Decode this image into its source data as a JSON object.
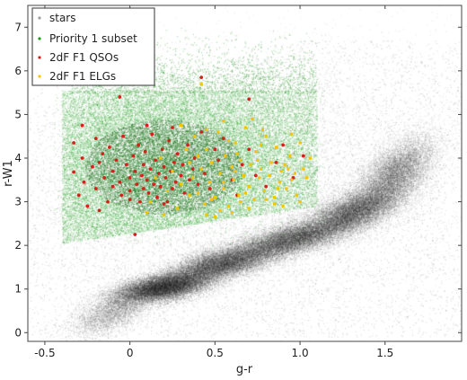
{
  "chart_data": {
    "type": "scatter",
    "title": "",
    "xlabel": "g-r",
    "ylabel": "r-W1",
    "xlim": [
      -0.6,
      1.95
    ],
    "ylim": [
      -0.2,
      7.5
    ],
    "xticks": [
      -0.5,
      0,
      0.5,
      1,
      1.5
    ],
    "xtick_labels": [
      "-0.5",
      "0",
      "0.5",
      "1.0",
      "1.5"
    ],
    "yticks": [
      0,
      1,
      2,
      3,
      4,
      5,
      6,
      7
    ],
    "ytick_labels": [
      "0",
      "1",
      "2",
      "3",
      "4",
      "5",
      "6",
      "7"
    ],
    "grid": false,
    "legend_position": "top-left",
    "series": [
      {
        "name": "stars",
        "color": "#9e9e9e",
        "marker": "dense-cloud",
        "density_components": [
          {
            "cx": -0.1,
            "cy": 0.5,
            "sx": 0.12,
            "sy": 0.3,
            "rho": 0.6,
            "w": 0.05
          },
          {
            "cx": 0.2,
            "cy": 1.05,
            "sx": 0.14,
            "sy": 0.18,
            "rho": 0.5,
            "w": 0.22
          },
          {
            "cx": 0.55,
            "cy": 1.6,
            "sx": 0.16,
            "sy": 0.22,
            "rho": 0.6,
            "w": 0.18
          },
          {
            "cx": 0.95,
            "cy": 2.15,
            "sx": 0.16,
            "sy": 0.22,
            "rho": 0.6,
            "w": 0.16
          },
          {
            "cx": 1.3,
            "cy": 2.75,
            "sx": 0.14,
            "sy": 0.28,
            "rho": 0.6,
            "w": 0.16
          },
          {
            "cx": 1.55,
            "cy": 3.6,
            "sx": 0.12,
            "sy": 0.45,
            "rho": 0.6,
            "w": 0.13
          },
          {
            "cx": 0.7,
            "cy": 3.3,
            "sx": 0.75,
            "sy": 1.7,
            "rho": 0.2,
            "w": 0.1
          }
        ]
      },
      {
        "name": "Priority 1 subset",
        "color": "#1a9e1a",
        "marker": "dense-cloud",
        "region": [
          [
            -0.4,
            2.05
          ],
          [
            1.1,
            2.9
          ],
          [
            1.1,
            5.55
          ],
          [
            -0.4,
            5.55
          ]
        ]
      },
      {
        "name": "2dF F1 QSOs",
        "color": "#d4221a",
        "marker": "dot",
        "points": [
          [
            -0.33,
            4.35
          ],
          [
            -0.33,
            3.68
          ],
          [
            -0.3,
            3.15
          ],
          [
            -0.28,
            4.0
          ],
          [
            -0.27,
            3.45
          ],
          [
            -0.25,
            2.9
          ],
          [
            -0.22,
            3.8
          ],
          [
            -0.2,
            4.45
          ],
          [
            -0.2,
            3.3
          ],
          [
            -0.18,
            3.9
          ],
          [
            -0.16,
            4.1
          ],
          [
            -0.15,
            3.55
          ],
          [
            -0.13,
            3.0
          ],
          [
            -0.12,
            4.25
          ],
          [
            -0.1,
            3.7
          ],
          [
            -0.1,
            3.35
          ],
          [
            -0.08,
            3.95
          ],
          [
            -0.06,
            3.45
          ],
          [
            -0.05,
            3.15
          ],
          [
            -0.04,
            4.5
          ],
          [
            -0.02,
            3.85
          ],
          [
            0.0,
            3.55
          ],
          [
            0.0,
            3.25
          ],
          [
            0.0,
            3.05
          ],
          [
            0.02,
            4.05
          ],
          [
            0.03,
            3.7
          ],
          [
            0.04,
            3.4
          ],
          [
            0.05,
            4.3
          ],
          [
            0.06,
            3.0
          ],
          [
            0.07,
            3.6
          ],
          [
            0.08,
            3.85
          ],
          [
            0.08,
            3.3
          ],
          [
            0.09,
            4.15
          ],
          [
            0.1,
            3.5
          ],
          [
            0.11,
            3.2
          ],
          [
            0.12,
            3.75
          ],
          [
            0.13,
            4.55
          ],
          [
            0.14,
            3.4
          ],
          [
            0.15,
            3.95
          ],
          [
            0.16,
            3.1
          ],
          [
            0.17,
            3.65
          ],
          [
            0.18,
            3.35
          ],
          [
            0.19,
            4.2
          ],
          [
            0.2,
            3.8
          ],
          [
            0.21,
            3.55
          ],
          [
            0.22,
            3.0
          ],
          [
            0.23,
            4.4
          ],
          [
            0.24,
            3.7
          ],
          [
            0.25,
            3.3
          ],
          [
            0.26,
            3.9
          ],
          [
            0.27,
            3.45
          ],
          [
            0.28,
            4.1
          ],
          [
            0.3,
            3.6
          ],
          [
            0.31,
            3.85
          ],
          [
            0.32,
            3.2
          ],
          [
            0.34,
            4.3
          ],
          [
            0.35,
            3.5
          ],
          [
            0.37,
            3.75
          ],
          [
            0.38,
            4.0
          ],
          [
            0.4,
            3.4
          ],
          [
            0.42,
            4.6
          ],
          [
            0.44,
            3.65
          ],
          [
            0.47,
            3.3
          ],
          [
            0.5,
            4.2
          ],
          [
            0.52,
            3.95
          ],
          [
            0.55,
            4.45
          ],
          [
            0.6,
            3.5
          ],
          [
            0.63,
            3.15
          ],
          [
            0.66,
            3.85
          ],
          [
            0.7,
            4.2
          ],
          [
            0.74,
            3.6
          ],
          [
            0.8,
            3.35
          ],
          [
            0.86,
            3.9
          ],
          [
            0.9,
            4.3
          ],
          [
            0.96,
            3.55
          ],
          [
            1.02,
            4.05
          ],
          [
            0.42,
            5.85
          ],
          [
            0.7,
            5.35
          ],
          [
            -0.06,
            5.4
          ],
          [
            -0.18,
            2.8
          ],
          [
            0.03,
            2.25
          ],
          [
            0.1,
            4.75
          ],
          [
            -0.28,
            4.75
          ],
          [
            0.2,
            2.95
          ],
          [
            0.25,
            4.7
          ]
        ]
      },
      {
        "name": "2dF F1 ELGs",
        "color": "#f5c400",
        "marker": "square",
        "points": [
          [
            0.35,
            3.9
          ],
          [
            0.37,
            3.55
          ],
          [
            0.38,
            4.5
          ],
          [
            0.4,
            3.2
          ],
          [
            0.42,
            3.75
          ],
          [
            0.44,
            2.95
          ],
          [
            0.45,
            4.2
          ],
          [
            0.47,
            3.45
          ],
          [
            0.48,
            3.9
          ],
          [
            0.5,
            3.1
          ],
          [
            0.52,
            4.6
          ],
          [
            0.53,
            3.65
          ],
          [
            0.55,
            3.3
          ],
          [
            0.56,
            4.05
          ],
          [
            0.58,
            2.9
          ],
          [
            0.6,
            3.8
          ],
          [
            0.61,
            3.5
          ],
          [
            0.62,
            4.35
          ],
          [
            0.64,
            3.15
          ],
          [
            0.65,
            3.95
          ],
          [
            0.67,
            3.6
          ],
          [
            0.68,
            4.7
          ],
          [
            0.7,
            3.35
          ],
          [
            0.71,
            3.85
          ],
          [
            0.73,
            3.05
          ],
          [
            0.74,
            4.15
          ],
          [
            0.76,
            3.55
          ],
          [
            0.77,
            3.75
          ],
          [
            0.79,
            3.25
          ],
          [
            0.8,
            4.5
          ],
          [
            0.82,
            3.6
          ],
          [
            0.83,
            3.9
          ],
          [
            0.85,
            3.1
          ],
          [
            0.86,
            4.25
          ],
          [
            0.88,
            3.45
          ],
          [
            0.89,
            3.7
          ],
          [
            0.91,
            3.85
          ],
          [
            0.92,
            3.3
          ],
          [
            0.94,
            4.05
          ],
          [
            0.95,
            3.5
          ],
          [
            0.97,
            3.65
          ],
          [
            0.98,
            3.15
          ],
          [
            1.0,
            4.35
          ],
          [
            1.02,
            3.75
          ],
          [
            1.04,
            3.55
          ],
          [
            1.06,
            4.0
          ],
          [
            0.33,
            4.2
          ],
          [
            0.3,
            3.4
          ],
          [
            0.28,
            2.85
          ],
          [
            0.25,
            3.7
          ],
          [
            0.22,
            3.25
          ],
          [
            0.2,
            2.7
          ],
          [
            0.18,
            4.0
          ],
          [
            0.15,
            3.55
          ],
          [
            0.12,
            3.0
          ],
          [
            0.1,
            2.75
          ],
          [
            0.6,
            2.75
          ],
          [
            0.5,
            2.65
          ],
          [
            0.45,
            2.7
          ],
          [
            0.72,
            4.9
          ],
          [
            0.55,
            4.85
          ],
          [
            0.85,
            2.95
          ],
          [
            0.4,
            4.05
          ],
          [
            0.65,
            3.0
          ],
          [
            0.78,
            4.65
          ],
          [
            0.9,
            2.9
          ],
          [
            0.3,
            4.75
          ],
          [
            0.75,
            3.95
          ],
          [
            0.58,
            4.4
          ],
          [
            0.48,
            3.05
          ],
          [
            0.95,
            4.55
          ],
          [
            0.42,
            5.7
          ],
          [
            0.87,
            3.3
          ],
          [
            0.63,
            4.1
          ],
          [
            0.53,
            2.8
          ],
          [
            0.68,
            3.2
          ],
          [
            1.0,
            3.0
          ],
          [
            0.35,
            3.15
          ],
          [
            0.8,
            3.05
          ],
          [
            0.55,
            3.45
          ],
          [
            0.7,
            2.85
          ],
          [
            0.45,
            4.65
          ],
          [
            0.93,
            3.75
          ],
          [
            0.62,
            3.7
          ],
          [
            0.77,
            4.3
          ]
        ]
      }
    ]
  }
}
